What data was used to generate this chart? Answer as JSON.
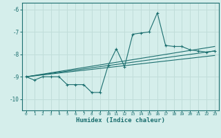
{
  "background_color": "#d5eeeb",
  "grid_color": "#c0ddd9",
  "line_color": "#1a6e6e",
  "xlabel": "Humidex (Indice chaleur)",
  "xlim": [
    -0.5,
    23.5
  ],
  "ylim": [
    -10.5,
    -5.7
  ],
  "yticks": [
    -10,
    -9,
    -8,
    -7,
    -6
  ],
  "xticks": [
    0,
    1,
    2,
    3,
    4,
    5,
    6,
    7,
    8,
    9,
    10,
    11,
    12,
    13,
    14,
    15,
    16,
    17,
    18,
    19,
    20,
    21,
    22,
    23
  ],
  "series": [
    [
      0,
      -9.0
    ],
    [
      1,
      -9.15
    ],
    [
      2,
      -9.0
    ],
    [
      3,
      -9.0
    ],
    [
      4,
      -9.0
    ],
    [
      5,
      -9.35
    ],
    [
      6,
      -9.35
    ],
    [
      7,
      -9.35
    ],
    [
      8,
      -9.7
    ],
    [
      9,
      -9.7
    ],
    [
      10,
      -8.5
    ],
    [
      11,
      -7.75
    ],
    [
      12,
      -8.55
    ],
    [
      13,
      -7.1
    ],
    [
      14,
      -7.05
    ],
    [
      15,
      -7.0
    ],
    [
      16,
      -6.15
    ],
    [
      17,
      -7.6
    ],
    [
      18,
      -7.65
    ],
    [
      19,
      -7.65
    ],
    [
      20,
      -7.8
    ],
    [
      21,
      -7.85
    ],
    [
      22,
      -7.9
    ],
    [
      23,
      -7.85
    ]
  ],
  "line1": [
    [
      0,
      -9.0
    ],
    [
      23,
      -7.65
    ]
  ],
  "line2": [
    [
      0,
      -9.0
    ],
    [
      23,
      -7.85
    ]
  ],
  "line3": [
    [
      0,
      -9.0
    ],
    [
      23,
      -8.05
    ]
  ]
}
